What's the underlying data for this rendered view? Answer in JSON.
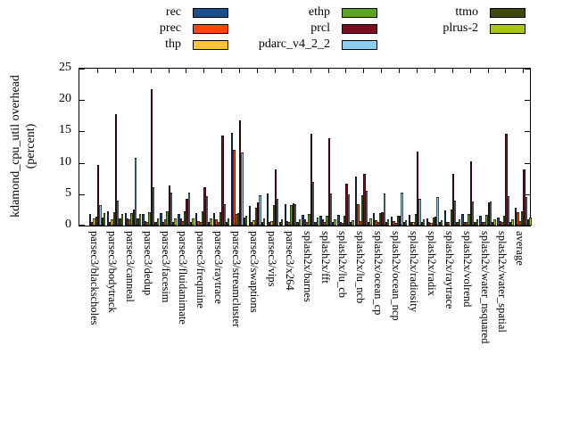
{
  "figure": {
    "background": "#ffffff",
    "ylabel_line1": "kdamond_cpu_util overhead",
    "ylabel_line2": "(percent)"
  },
  "chart_data": {
    "type": "bar",
    "title": "",
    "xlabel": "",
    "ylabel": "kdamond_cpu_util overhead (percent)",
    "ylim": [
      0,
      25
    ],
    "yticks": [
      0,
      5,
      10,
      15,
      20,
      25
    ],
    "grid": false,
    "legend_position": "top",
    "categories": [
      "parsec3/blackscholes",
      "parsec3/bodytrack",
      "parsec3/canneal",
      "parsec3/dedup",
      "parsec3/facesim",
      "parsec3/fluidanimate",
      "parsec3/freqmine",
      "parsec3/raytrace",
      "parsec3/streamcluster",
      "parsec3/swaptions",
      "parsec3/vips",
      "parsec3/x264",
      "splash2x/barnes",
      "splash2x/fft",
      "splash2x/lu_cb",
      "splash2x/lu_ncb",
      "splash2x/ocean_cp",
      "splash2x/ocean_ncp",
      "splash2x/radiosity",
      "splash2x/radix",
      "splash2x/raytrace",
      "splash2x/volrend",
      "splash2x/water_nsquared",
      "splash2x/water_spatial",
      "average"
    ],
    "series": [
      {
        "name": "rec",
        "color": "#1c4f8e",
        "values": [
          1.8,
          2.3,
          2.0,
          1.9,
          2.0,
          1.9,
          2.0,
          2.0,
          14.8,
          3.1,
          5.1,
          3.4,
          1.7,
          1.5,
          1.7,
          7.8,
          2.0,
          1.4,
          1.7,
          1.2,
          2.4,
          1.8,
          1.5,
          1.3,
          2.9
        ]
      },
      {
        "name": "prec",
        "color": "#ff4500",
        "values": [
          0.6,
          0.6,
          1.2,
          0.7,
          0.6,
          1.2,
          0.7,
          1.0,
          12.1,
          0.6,
          0.6,
          0.7,
          1.0,
          1.0,
          0.5,
          3.4,
          0.9,
          0.7,
          0.6,
          0.6,
          0.6,
          0.6,
          0.6,
          0.7,
          2.1
        ]
      },
      {
        "name": "thp",
        "color": "#ffc433",
        "values": [
          1.2,
          1.0,
          1.0,
          0.5,
          1.0,
          0.7,
          0.5,
          0.5,
          1.9,
          0.9,
          0.7,
          0.6,
          0.5,
          0.5,
          0.4,
          0.7,
          0.5,
          0.4,
          0.5,
          0.4,
          0.5,
          0.5,
          0.5,
          0.5,
          0.7
        ]
      },
      {
        "name": "ethp",
        "color": "#5da520",
        "values": [
          1.4,
          2.1,
          2.0,
          2.1,
          2.3,
          2.3,
          2.3,
          2.1,
          2.0,
          2.8,
          3.2,
          3.3,
          1.8,
          1.6,
          1.6,
          4.9,
          2.0,
          1.5,
          1.8,
          1.3,
          2.5,
          1.9,
          1.7,
          1.5,
          2.3
        ]
      },
      {
        "name": "prcl",
        "color": "#790d20",
        "values": [
          9.7,
          17.7,
          2.6,
          21.7,
          6.4,
          4.2,
          6.1,
          14.4,
          16.7,
          3.7,
          9.0,
          3.5,
          14.7,
          13.9,
          6.7,
          8.3,
          2.1,
          1.6,
          11.8,
          1.4,
          8.3,
          10.2,
          3.7,
          14.7,
          8.9
        ]
      },
      {
        "name": "pdarc_v4_2_2",
        "color": "#8cccee",
        "values": [
          3.3,
          4.0,
          10.8,
          6.1,
          5.3,
          5.2,
          4.7,
          3.4,
          11.7,
          4.9,
          4.2,
          3.4,
          6.9,
          5.1,
          5.0,
          5.5,
          5.1,
          5.3,
          4.3,
          4.5,
          4.0,
          3.9,
          3.8,
          4.7,
          4.6
        ]
      },
      {
        "name": "ttmo",
        "color": "#3e490f",
        "values": [
          1.3,
          1.2,
          1.2,
          0.6,
          0.6,
          0.6,
          0.6,
          0.6,
          1.3,
          0.6,
          0.6,
          0.6,
          0.6,
          0.5,
          0.5,
          0.6,
          0.5,
          0.5,
          0.5,
          0.5,
          0.5,
          0.5,
          0.5,
          0.5,
          1.0
        ]
      },
      {
        "name": "plrus-2",
        "color": "#a9c613",
        "values": [
          2.0,
          1.8,
          1.9,
          1.1,
          1.2,
          1.1,
          1.2,
          1.1,
          1.6,
          1.1,
          1.0,
          1.0,
          1.3,
          1.0,
          0.9,
          1.2,
          1.0,
          0.9,
          1.0,
          0.9,
          1.0,
          1.0,
          1.0,
          1.0,
          1.3
        ]
      }
    ]
  }
}
